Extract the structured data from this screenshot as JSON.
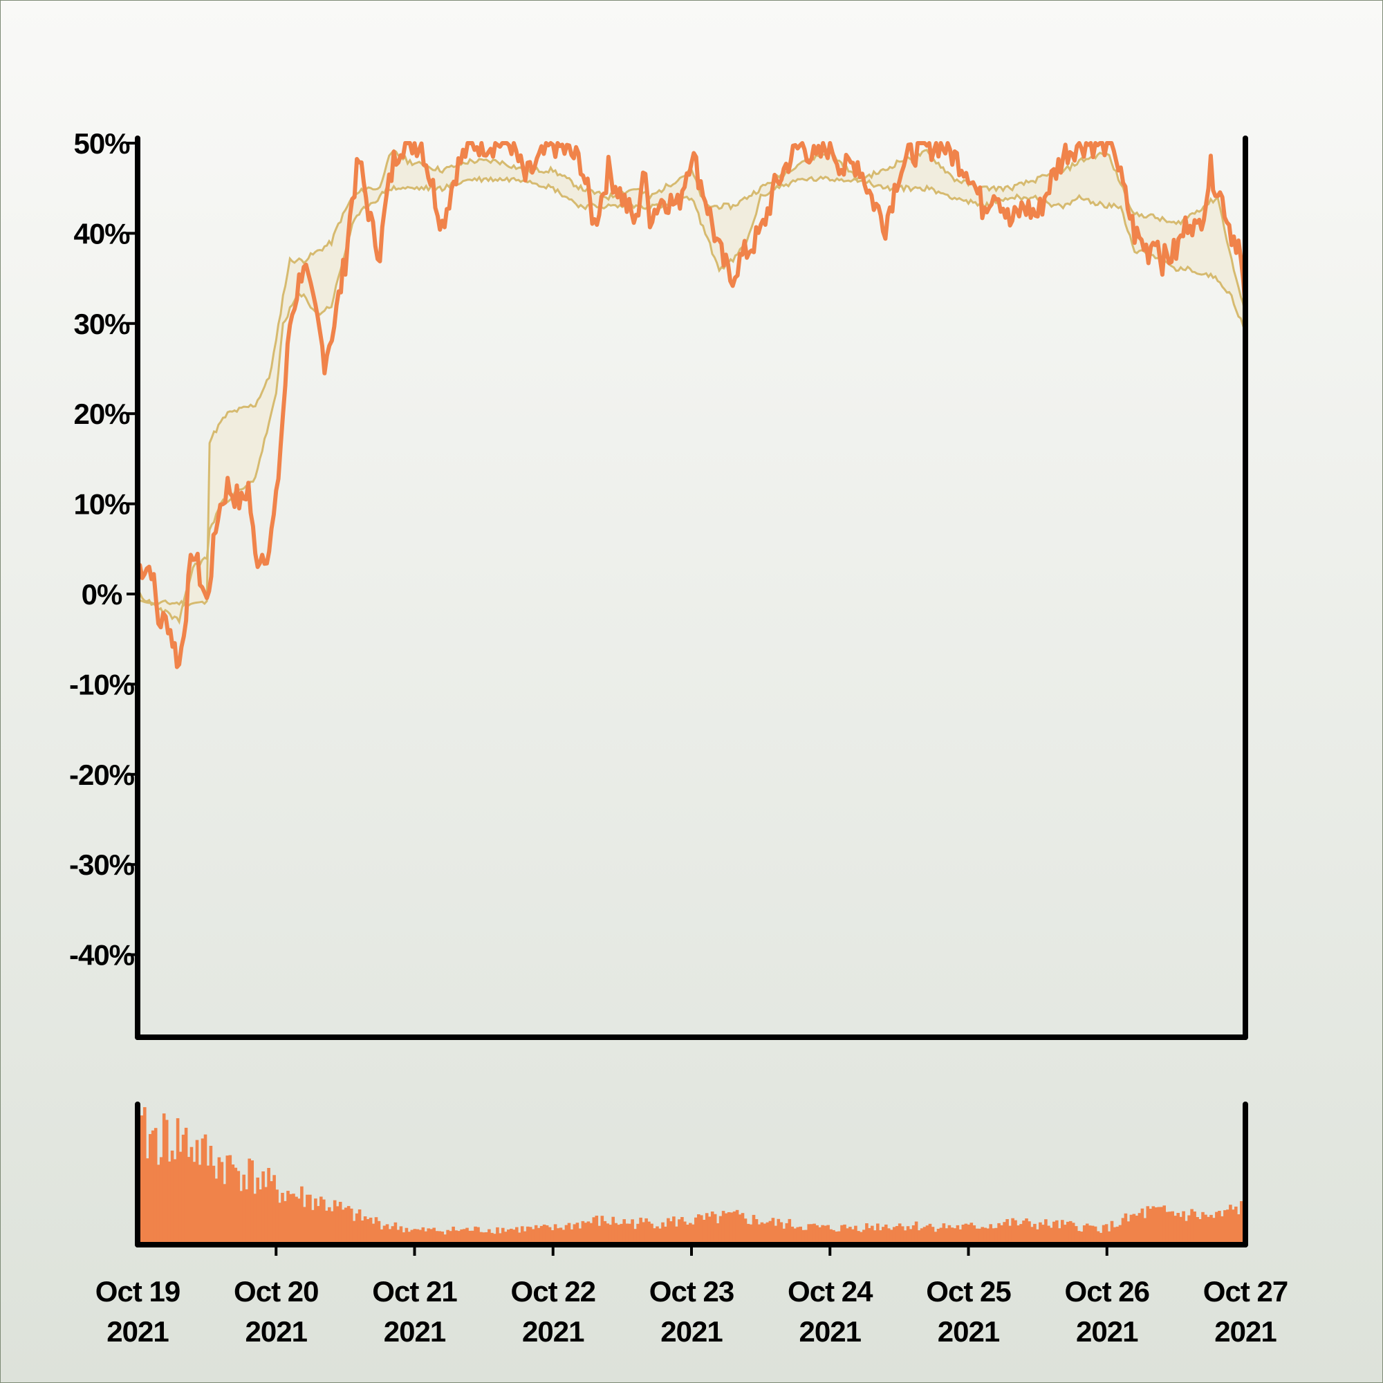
{
  "chart_data": [
    {
      "type": "line",
      "name": "price-panel",
      "y_ticks": [
        "50%",
        "40%",
        "30%",
        "20%",
        "10%",
        "0%",
        "-10%",
        "-20%",
        "-30%",
        "-40%"
      ],
      "y_tick_values": [
        50,
        40,
        30,
        20,
        10,
        0,
        -10,
        -20,
        -30,
        -40
      ],
      "ylim": [
        -49,
        50
      ],
      "x_dates": [
        "Oct 19",
        "Oct 20",
        "Oct 21",
        "Oct 22",
        "Oct 23",
        "Oct 24",
        "Oct 25",
        "Oct 26",
        "Oct 27"
      ],
      "x_years": [
        "2021",
        "2021",
        "2021",
        "2021",
        "2021",
        "2021",
        "2021",
        "2021",
        "2021"
      ],
      "xlim_days": [
        0,
        8
      ],
      "grid": false,
      "colors": {
        "main": "#f0834a",
        "band": "#d6ba6f",
        "band_fill": "#f1ecdc",
        "axis": "#000000"
      },
      "series": [
        {
          "role": "main",
          "points": [
            [
              0,
              3
            ],
            [
              0.1,
              3
            ],
            [
              0.15,
              -3
            ],
            [
              0.22,
              -3
            ],
            [
              0.3,
              -8
            ],
            [
              0.4,
              5
            ],
            [
              0.5,
              -1
            ],
            [
              0.58,
              9
            ],
            [
              0.65,
              12
            ],
            [
              0.75,
              10
            ],
            [
              0.8,
              12
            ],
            [
              0.85,
              4
            ],
            [
              0.95,
              5
            ],
            [
              1.0,
              10
            ],
            [
              1.05,
              20
            ],
            [
              1.1,
              30
            ],
            [
              1.2,
              37
            ],
            [
              1.25,
              33
            ],
            [
              1.3,
              30
            ],
            [
              1.35,
              26
            ],
            [
              1.42,
              30
            ],
            [
              1.5,
              37
            ],
            [
              1.55,
              44
            ],
            [
              1.6,
              48
            ],
            [
              1.7,
              40
            ],
            [
              1.75,
              38
            ],
            [
              1.8,
              44
            ],
            [
              1.85,
              48
            ],
            [
              1.9,
              50
            ],
            [
              2.05,
              50
            ],
            [
              2.15,
              44
            ],
            [
              2.2,
              41
            ],
            [
              2.3,
              47
            ],
            [
              2.4,
              50
            ],
            [
              2.7,
              50
            ],
            [
              2.8,
              46
            ],
            [
              2.9,
              48
            ],
            [
              3.0,
              50
            ],
            [
              3.2,
              48
            ],
            [
              3.3,
              41
            ],
            [
              3.4,
              47
            ],
            [
              3.5,
              44
            ],
            [
              3.6,
              41
            ],
            [
              3.65,
              47
            ],
            [
              3.7,
              42
            ],
            [
              3.8,
              44
            ],
            [
              3.9,
              43
            ],
            [
              4.0,
              49
            ],
            [
              4.1,
              44
            ],
            [
              4.2,
              38
            ],
            [
              4.28,
              35
            ],
            [
              4.35,
              37
            ],
            [
              4.4,
              38
            ],
            [
              4.5,
              40
            ],
            [
              4.6,
              45
            ],
            [
              4.7,
              48
            ],
            [
              4.8,
              50
            ],
            [
              4.9,
              48
            ],
            [
              5.0,
              50
            ],
            [
              5.1,
              47
            ],
            [
              5.2,
              48
            ],
            [
              5.3,
              44
            ],
            [
              5.4,
              41
            ],
            [
              5.5,
              47
            ],
            [
              5.6,
              49
            ],
            [
              5.8,
              50
            ],
            [
              6.0,
              47
            ],
            [
              6.1,
              43
            ],
            [
              6.2,
              45
            ],
            [
              6.3,
              41
            ],
            [
              6.4,
              43
            ],
            [
              6.5,
              42
            ],
            [
              6.6,
              46
            ],
            [
              6.7,
              49
            ],
            [
              6.8,
              50
            ],
            [
              7.05,
              50
            ],
            [
              7.1,
              46
            ],
            [
              7.2,
              40
            ],
            [
              7.3,
              38
            ],
            [
              7.35,
              40
            ],
            [
              7.4,
              37
            ],
            [
              7.5,
              38
            ],
            [
              7.6,
              42
            ],
            [
              7.65,
              40
            ],
            [
              7.7,
              43
            ],
            [
              7.75,
              47
            ],
            [
              7.8,
              45
            ],
            [
              7.85,
              43
            ],
            [
              7.9,
              40
            ],
            [
              7.95,
              39
            ],
            [
              8.0,
              32
            ]
          ]
        },
        {
          "role": "band-upper",
          "points": [
            [
              0,
              0
            ],
            [
              0.1,
              -1
            ],
            [
              0.25,
              -1
            ],
            [
              0.4,
              -1
            ],
            [
              0.5,
              -1
            ],
            [
              0.52,
              17
            ],
            [
              0.6,
              19
            ],
            [
              0.65,
              20
            ],
            [
              0.85,
              21
            ],
            [
              0.95,
              24
            ],
            [
              1.0,
              28
            ],
            [
              1.05,
              33
            ],
            [
              1.1,
              37
            ],
            [
              1.2,
              37
            ],
            [
              1.3,
              38
            ],
            [
              1.4,
              39
            ],
            [
              1.45,
              41
            ],
            [
              1.55,
              44
            ],
            [
              1.65,
              45
            ],
            [
              1.75,
              45
            ],
            [
              1.8,
              48
            ],
            [
              1.85,
              49
            ],
            [
              1.95,
              48
            ],
            [
              2.2,
              47
            ],
            [
              2.4,
              48
            ],
            [
              2.6,
              48
            ],
            [
              2.8,
              47
            ],
            [
              3.0,
              47
            ],
            [
              3.2,
              45
            ],
            [
              3.4,
              44
            ],
            [
              3.6,
              45
            ],
            [
              3.7,
              44
            ],
            [
              3.8,
              45
            ],
            [
              3.9,
              46
            ],
            [
              4.0,
              47
            ],
            [
              4.1,
              43
            ],
            [
              4.3,
              43
            ],
            [
              4.5,
              45
            ],
            [
              4.6,
              46
            ],
            [
              4.8,
              48
            ],
            [
              5.0,
              49
            ],
            [
              5.2,
              46
            ],
            [
              5.4,
              47
            ],
            [
              5.5,
              48
            ],
            [
              5.7,
              49
            ],
            [
              5.9,
              46
            ],
            [
              6.1,
              45
            ],
            [
              6.3,
              45
            ],
            [
              6.5,
              46
            ],
            [
              6.7,
              47
            ],
            [
              6.8,
              48
            ],
            [
              7.0,
              49
            ],
            [
              7.2,
              42
            ],
            [
              7.3,
              42
            ],
            [
              7.5,
              41
            ],
            [
              7.6,
              42
            ],
            [
              7.8,
              44
            ],
            [
              7.9,
              37
            ],
            [
              8.0,
              31
            ]
          ]
        },
        {
          "role": "band-lower",
          "points": [
            [
              0,
              -1
            ],
            [
              0.1,
              -1
            ],
            [
              0.2,
              -2
            ],
            [
              0.3,
              -3
            ],
            [
              0.4,
              3
            ],
            [
              0.5,
              4
            ],
            [
              0.52,
              7
            ],
            [
              0.6,
              10
            ],
            [
              0.7,
              11
            ],
            [
              0.8,
              12
            ],
            [
              0.85,
              13
            ],
            [
              0.9,
              16
            ],
            [
              1.0,
              22
            ],
            [
              1.05,
              30
            ],
            [
              1.15,
              33
            ],
            [
              1.2,
              33
            ],
            [
              1.3,
              31
            ],
            [
              1.4,
              32
            ],
            [
              1.45,
              35
            ],
            [
              1.55,
              41
            ],
            [
              1.65,
              43
            ],
            [
              1.75,
              44
            ],
            [
              1.8,
              45
            ],
            [
              1.9,
              45
            ],
            [
              2.2,
              45
            ],
            [
              2.4,
              46
            ],
            [
              2.6,
              46
            ],
            [
              2.8,
              46
            ],
            [
              3.0,
              45
            ],
            [
              3.2,
              43
            ],
            [
              3.4,
              43
            ],
            [
              3.6,
              43
            ],
            [
              3.8,
              43
            ],
            [
              4.0,
              44
            ],
            [
              4.1,
              40
            ],
            [
              4.2,
              36
            ],
            [
              4.3,
              37
            ],
            [
              4.4,
              39
            ],
            [
              4.5,
              44
            ],
            [
              4.6,
              45
            ],
            [
              4.8,
              46
            ],
            [
              5.0,
              46
            ],
            [
              5.2,
              46
            ],
            [
              5.4,
              45
            ],
            [
              5.5,
              45
            ],
            [
              5.7,
              45
            ],
            [
              5.9,
              44
            ],
            [
              6.1,
              43
            ],
            [
              6.3,
              44
            ],
            [
              6.5,
              44
            ],
            [
              6.6,
              43
            ],
            [
              6.7,
              43
            ],
            [
              6.8,
              44
            ],
            [
              7.0,
              43
            ],
            [
              7.1,
              43
            ],
            [
              7.2,
              38
            ],
            [
              7.3,
              38
            ],
            [
              7.5,
              36
            ],
            [
              7.6,
              36
            ],
            [
              7.8,
              35
            ],
            [
              7.9,
              33
            ],
            [
              8.0,
              29
            ]
          ]
        }
      ]
    },
    {
      "type": "bar",
      "name": "volume-panel",
      "color": "#f0834a",
      "xlim_days": [
        0,
        8
      ],
      "bar_count": 400,
      "envelope": [
        [
          0,
          1.0
        ],
        [
          0.3,
          0.98
        ],
        [
          0.5,
          0.8
        ],
        [
          0.8,
          0.65
        ],
        [
          1.0,
          0.5
        ],
        [
          1.3,
          0.4
        ],
        [
          1.6,
          0.25
        ],
        [
          1.8,
          0.18
        ],
        [
          2.0,
          0.13
        ],
        [
          2.5,
          0.14
        ],
        [
          3.0,
          0.15
        ],
        [
          3.3,
          0.22
        ],
        [
          3.6,
          0.2
        ],
        [
          4.0,
          0.22
        ],
        [
          4.3,
          0.26
        ],
        [
          4.6,
          0.2
        ],
        [
          5.0,
          0.15
        ],
        [
          5.5,
          0.18
        ],
        [
          6.0,
          0.16
        ],
        [
          6.3,
          0.2
        ],
        [
          6.7,
          0.18
        ],
        [
          7.0,
          0.15
        ],
        [
          7.3,
          0.3
        ],
        [
          7.6,
          0.28
        ],
        [
          7.8,
          0.25
        ],
        [
          8.0,
          0.35
        ]
      ]
    }
  ]
}
